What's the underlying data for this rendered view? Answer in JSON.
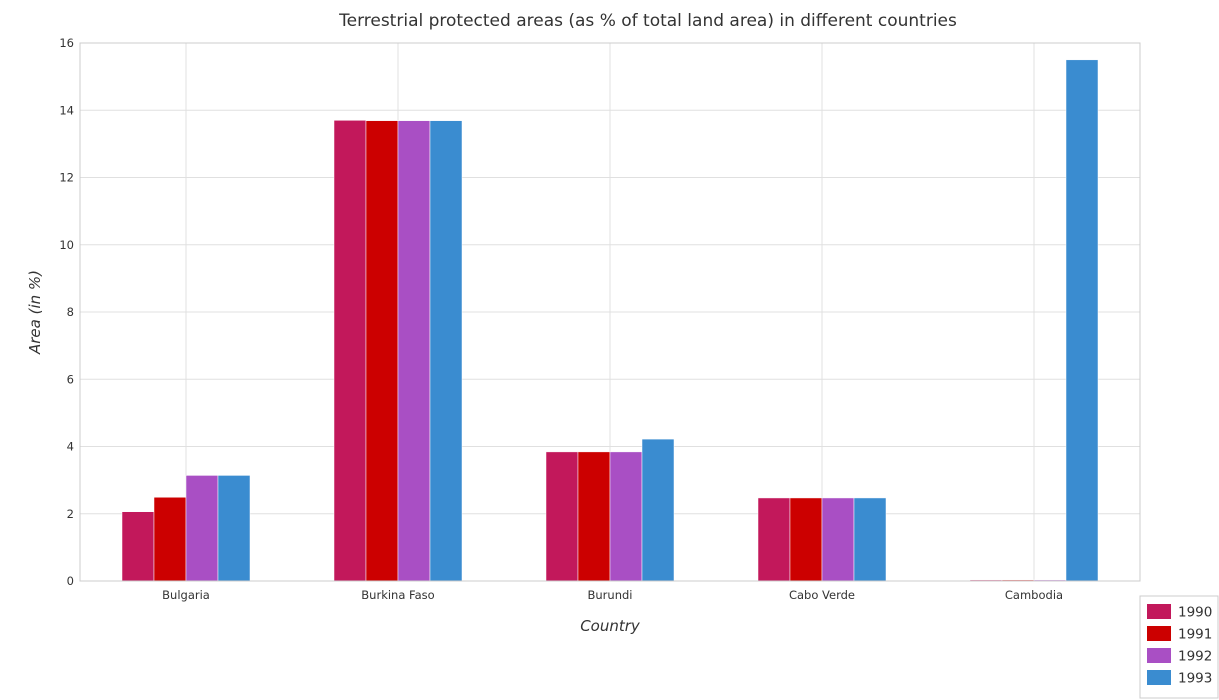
{
  "chart_data": {
    "type": "bar",
    "title": "Terrestrial protected areas (as % of total land area) in different countries",
    "xlabel": "Country",
    "ylabel": "Area (in %)",
    "ylim": [
      0,
      16
    ],
    "yticks": [
      "0",
      "2",
      "4",
      "6",
      "8",
      "10",
      "12",
      "14",
      "16"
    ],
    "grid": true,
    "legend_position": "bottom-right",
    "categories": [
      "Bulgaria",
      "Burkina Faso",
      "Burundi",
      "Cabo Verde",
      "Cambodia"
    ],
    "series": [
      {
        "name": "1990",
        "color": "#c2185b",
        "values": [
          2.06,
          13.7,
          3.84,
          2.47,
          0.03
        ]
      },
      {
        "name": "1991",
        "color": "#cc0000",
        "values": [
          2.49,
          13.69,
          3.84,
          2.47,
          0.03
        ]
      },
      {
        "name": "1992",
        "color": "#a94fc4",
        "values": [
          3.14,
          13.69,
          3.84,
          2.47,
          0.03
        ]
      },
      {
        "name": "1993",
        "color": "#3a8cd0",
        "values": [
          3.14,
          13.69,
          4.22,
          2.47,
          15.5
        ]
      }
    ]
  }
}
